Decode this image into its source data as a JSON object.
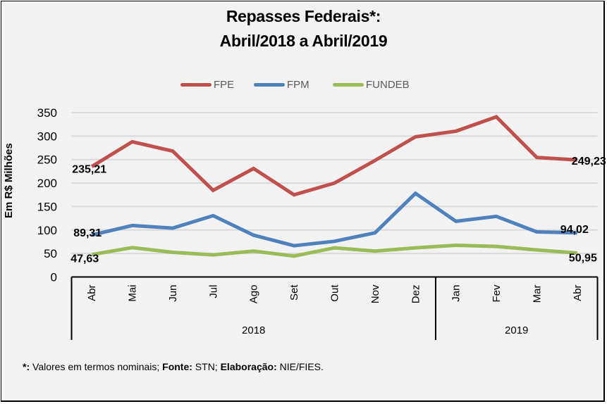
{
  "chart_data": {
    "type": "line",
    "title": [
      "Repasses Federais*:",
      "Abril/2018 a Abril/2019"
    ],
    "xlabel": "",
    "ylabel": "Em R$ Milhões",
    "ylim": [
      0,
      350
    ],
    "yticks": [
      0,
      50,
      100,
      150,
      200,
      250,
      300,
      350
    ],
    "grid": true,
    "legend_position": "top-center",
    "categories": [
      "Abr",
      "Mai",
      "Jun",
      "Jul",
      "Ago",
      "Set",
      "Out",
      "Nov",
      "Dez",
      "Jan",
      "Fev",
      "Mar",
      "Abr"
    ],
    "year_groups": [
      {
        "label": "2018",
        "count": 9
      },
      {
        "label": "2019",
        "count": 4
      }
    ],
    "series": [
      {
        "name": "FPE",
        "color": "#c0504d",
        "values": [
          235.21,
          288,
          268,
          184.5,
          231,
          175,
          200,
          248,
          298.5,
          310.5,
          341,
          254.5,
          249.23
        ],
        "labels": {
          "first": "235,21",
          "last": "249,23"
        }
      },
      {
        "name": "FPM",
        "color": "#4f81bd",
        "values": [
          89.31,
          109.5,
          104,
          130.5,
          89,
          66.5,
          76,
          94,
          178,
          118.5,
          129,
          96,
          94.02
        ],
        "labels": {
          "first": "89,31",
          "last": "94,02"
        }
      },
      {
        "name": "FUNDEB",
        "color": "#9bbb59",
        "values": [
          47.63,
          62.5,
          52.5,
          47,
          55,
          44.5,
          62,
          55,
          62,
          67.5,
          65,
          57.5,
          50.95
        ],
        "labels": {
          "first": "47,63",
          "last": "50,95"
        }
      }
    ]
  },
  "footnote": {
    "asterisk_label": "*:",
    "asterisk_text": " Valores em termos nominais; ",
    "source_label": "Fonte:",
    "source_text": " STN; ",
    "prepared_label": "Elaboração:",
    "prepared_text": " NIE/FIES."
  }
}
